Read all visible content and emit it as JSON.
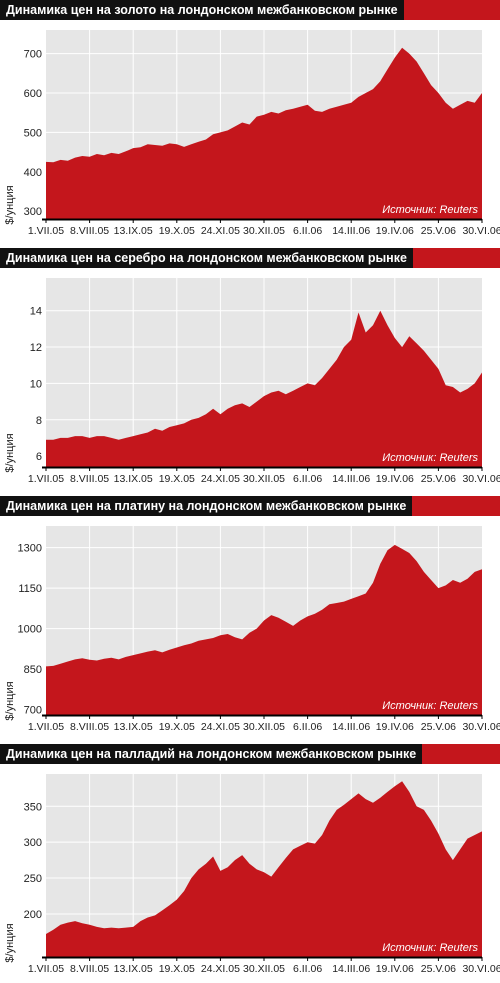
{
  "chart_data": [
    {
      "type": "area",
      "title": "Динамика цен на золото на лондонском межбанковском рынке",
      "ylabel": "$/унция",
      "source": "Источник: Reuters",
      "x_ticks": [
        "1.VII.05",
        "8.VIII.05",
        "13.IX.05",
        "19.X.05",
        "24.XI.05",
        "30.XII.05",
        "6.II.06",
        "14.III.06",
        "19.IV.06",
        "25.V.06",
        "30.VI.06"
      ],
      "y_ticks": [
        300,
        400,
        500,
        600,
        700
      ],
      "ylim": [
        280,
        760
      ],
      "grid": true,
      "color": "#c4161c",
      "values": [
        425,
        424,
        430,
        428,
        436,
        440,
        438,
        445,
        442,
        448,
        445,
        452,
        460,
        462,
        470,
        468,
        466,
        472,
        470,
        463,
        470,
        476,
        482,
        495,
        500,
        505,
        515,
        525,
        520,
        540,
        545,
        552,
        548,
        556,
        560,
        565,
        570,
        555,
        552,
        560,
        565,
        570,
        575,
        590,
        600,
        610,
        630,
        660,
        690,
        715,
        700,
        680,
        650,
        620,
        600,
        575,
        560,
        570,
        580,
        575,
        600
      ]
    },
    {
      "type": "area",
      "title": "Динамика цен на серебро на лондонском межбанковском рынке",
      "ylabel": "$/унция",
      "source": "Источник: Reuters",
      "x_ticks": [
        "1.VII.05",
        "8.VIII.05",
        "13.IX.05",
        "19.X.05",
        "24.XI.05",
        "30.XII.05",
        "6.II.06",
        "14.III.06",
        "19.IV.06",
        "25.V.06",
        "30.VI.06"
      ],
      "y_ticks": [
        6,
        8,
        10,
        12,
        14
      ],
      "ylim": [
        5.4,
        15.8
      ],
      "grid": true,
      "color": "#c4161c",
      "values": [
        6.9,
        6.9,
        7.0,
        7.0,
        7.1,
        7.1,
        7.0,
        7.1,
        7.1,
        7.0,
        6.9,
        7.0,
        7.1,
        7.2,
        7.3,
        7.5,
        7.4,
        7.6,
        7.7,
        7.8,
        8.0,
        8.1,
        8.3,
        8.6,
        8.3,
        8.6,
        8.8,
        8.9,
        8.7,
        9.0,
        9.3,
        9.5,
        9.6,
        9.4,
        9.6,
        9.8,
        10.0,
        9.9,
        10.3,
        10.8,
        11.3,
        12.0,
        12.4,
        13.9,
        12.8,
        13.2,
        14.0,
        13.2,
        12.5,
        12.0,
        12.6,
        12.2,
        11.8,
        11.3,
        10.8,
        9.9,
        9.8,
        9.5,
        9.7,
        10.0,
        10.6
      ]
    },
    {
      "type": "area",
      "title": "Динамика цен на платину на лондонском межбанковском рынке",
      "ylabel": "$/унция",
      "source": "Источник: Reuters",
      "x_ticks": [
        "1.VII.05",
        "8.VIII.05",
        "13.IX.05",
        "19.X.05",
        "24.XI.05",
        "30.XII.05",
        "6.II.06",
        "14.III.06",
        "19.IV.06",
        "25.V.06",
        "30.VI.06"
      ],
      "y_ticks": [
        700,
        850,
        1000,
        1150,
        1300
      ],
      "ylim": [
        680,
        1380
      ],
      "grid": true,
      "color": "#c4161c",
      "values": [
        860,
        862,
        870,
        878,
        886,
        890,
        885,
        882,
        888,
        892,
        886,
        895,
        902,
        908,
        915,
        920,
        912,
        922,
        930,
        938,
        945,
        955,
        960,
        965,
        975,
        980,
        968,
        960,
        985,
        1000,
        1030,
        1050,
        1040,
        1025,
        1010,
        1030,
        1045,
        1055,
        1070,
        1090,
        1095,
        1100,
        1110,
        1120,
        1130,
        1170,
        1240,
        1290,
        1310,
        1295,
        1280,
        1250,
        1210,
        1180,
        1150,
        1160,
        1180,
        1170,
        1185,
        1210,
        1220
      ]
    },
    {
      "type": "area",
      "title": "Динамика цен на палладий на лондонском межбанковском рынке",
      "ylabel": "$/унция",
      "source": "Источник: Reuters",
      "x_ticks": [
        "1.VII.05",
        "8.VIII.05",
        "13.IX.05",
        "19.X.05",
        "24.XI.05",
        "30.XII.05",
        "6.II.06",
        "14.III.06",
        "19.IV.06",
        "25.V.06",
        "30.VI.06"
      ],
      "y_ticks": [
        200,
        250,
        300,
        350
      ],
      "ylim": [
        140,
        395
      ],
      "grid": true,
      "color": "#c4161c",
      "values": [
        172,
        178,
        185,
        188,
        190,
        187,
        185,
        182,
        180,
        181,
        180,
        181,
        182,
        190,
        195,
        198,
        205,
        212,
        220,
        232,
        250,
        262,
        270,
        280,
        260,
        265,
        275,
        282,
        270,
        262,
        258,
        252,
        265,
        278,
        290,
        295,
        300,
        298,
        310,
        330,
        345,
        352,
        360,
        368,
        360,
        355,
        362,
        370,
        378,
        385,
        370,
        350,
        345,
        330,
        312,
        290,
        275,
        290,
        305,
        310,
        315
      ]
    }
  ]
}
